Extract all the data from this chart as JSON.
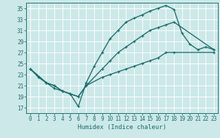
{
  "xlabel": "Humidex (Indice chaleur)",
  "bg_color": "#cce8e8",
  "line_color": "#1a6b6b",
  "grid_color": "#ffffff",
  "xlim": [
    -0.5,
    23.5
  ],
  "ylim": [
    16,
    36
  ],
  "yticks": [
    17,
    19,
    21,
    23,
    25,
    27,
    29,
    31,
    33,
    35
  ],
  "xticks": [
    0,
    1,
    2,
    3,
    4,
    5,
    6,
    7,
    8,
    9,
    10,
    11,
    12,
    13,
    14,
    15,
    16,
    17,
    18,
    19,
    20,
    21,
    22,
    23
  ],
  "line1_x": [
    0,
    1,
    2,
    3,
    4,
    5,
    6,
    7,
    8,
    9,
    10,
    11,
    12,
    13,
    14,
    15,
    16,
    17,
    18,
    19,
    20,
    21,
    22,
    23
  ],
  "line1_y": [
    24,
    22.5,
    21.5,
    20.5,
    20,
    19.5,
    17.2,
    21.5,
    24.5,
    27.0,
    29.5,
    31.0,
    32.5,
    33.2,
    33.8,
    34.5,
    35.0,
    35.5,
    34.8,
    30.5,
    28.5,
    27.5,
    28.0,
    27.5
  ],
  "line2_x": [
    0,
    2,
    3,
    4,
    5,
    6,
    7,
    9,
    10,
    11,
    12,
    13,
    14,
    15,
    16,
    17,
    18,
    23
  ],
  "line2_y": [
    24,
    21.5,
    21.0,
    20.0,
    19.5,
    19.0,
    21.0,
    24.0,
    25.5,
    27.0,
    28.0,
    29.0,
    30.0,
    31.0,
    31.5,
    32.0,
    32.5,
    27.5
  ],
  "line3_x": [
    0,
    2,
    3,
    4,
    5,
    6,
    7,
    9,
    10,
    11,
    12,
    13,
    14,
    15,
    16,
    17,
    18,
    23
  ],
  "line3_y": [
    24,
    21.5,
    21.0,
    20.0,
    19.5,
    19.0,
    21.0,
    22.5,
    23.0,
    23.5,
    24.0,
    24.5,
    25.0,
    25.5,
    26.0,
    27.0,
    27.0,
    27.0
  ],
  "marker_size": 3.5,
  "line_width": 1.0
}
